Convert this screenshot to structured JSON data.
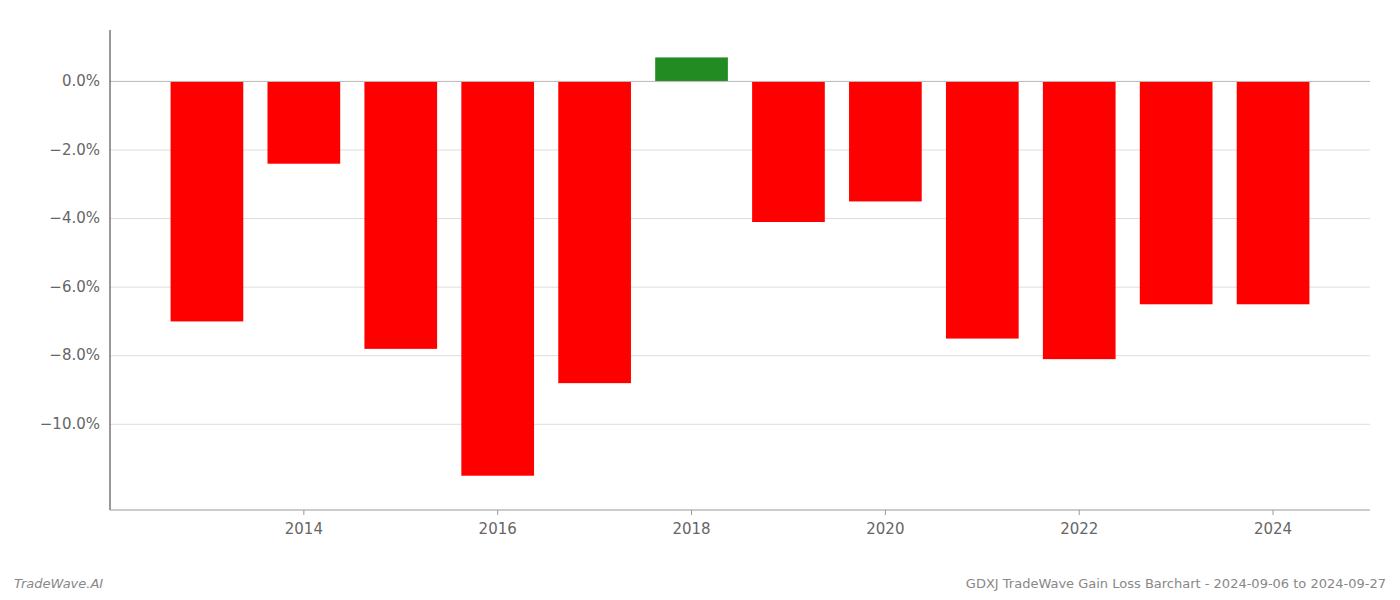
{
  "chart_data": {
    "type": "bar",
    "x": [
      2013,
      2014,
      2015,
      2016,
      2017,
      2018,
      2019,
      2020,
      2021,
      2022,
      2023,
      2024
    ],
    "values": [
      -7.0,
      -2.4,
      -7.8,
      -11.5,
      -8.8,
      0.7,
      -4.1,
      -3.5,
      -7.5,
      -8.1,
      -6.5,
      -6.5
    ],
    "colors": [
      "#ff0000",
      "#ff0000",
      "#ff0000",
      "#ff0000",
      "#ff0000",
      "#228B22",
      "#ff0000",
      "#ff0000",
      "#ff0000",
      "#ff0000",
      "#ff0000",
      "#ff0000"
    ],
    "xlim": [
      2012,
      2025
    ],
    "xticks": [
      2014,
      2016,
      2018,
      2020,
      2022,
      2024
    ],
    "ylim": [
      -12.5,
      1.5
    ],
    "yticks": [
      {
        "value": 0.0,
        "label": "0.0%"
      },
      {
        "value": -2.0,
        "label": "−2.0%"
      },
      {
        "value": -4.0,
        "label": "−4.0%"
      },
      {
        "value": -6.0,
        "label": "−6.0%"
      },
      {
        "value": -8.0,
        "label": "−8.0%"
      },
      {
        "value": -10.0,
        "label": "−10.0%"
      }
    ],
    "grid": true,
    "annotations": [
      "TradeWave.AI",
      "GDXJ TradeWave Gain Loss Barchart - 2024-09-06 to 2024-09-27"
    ]
  }
}
